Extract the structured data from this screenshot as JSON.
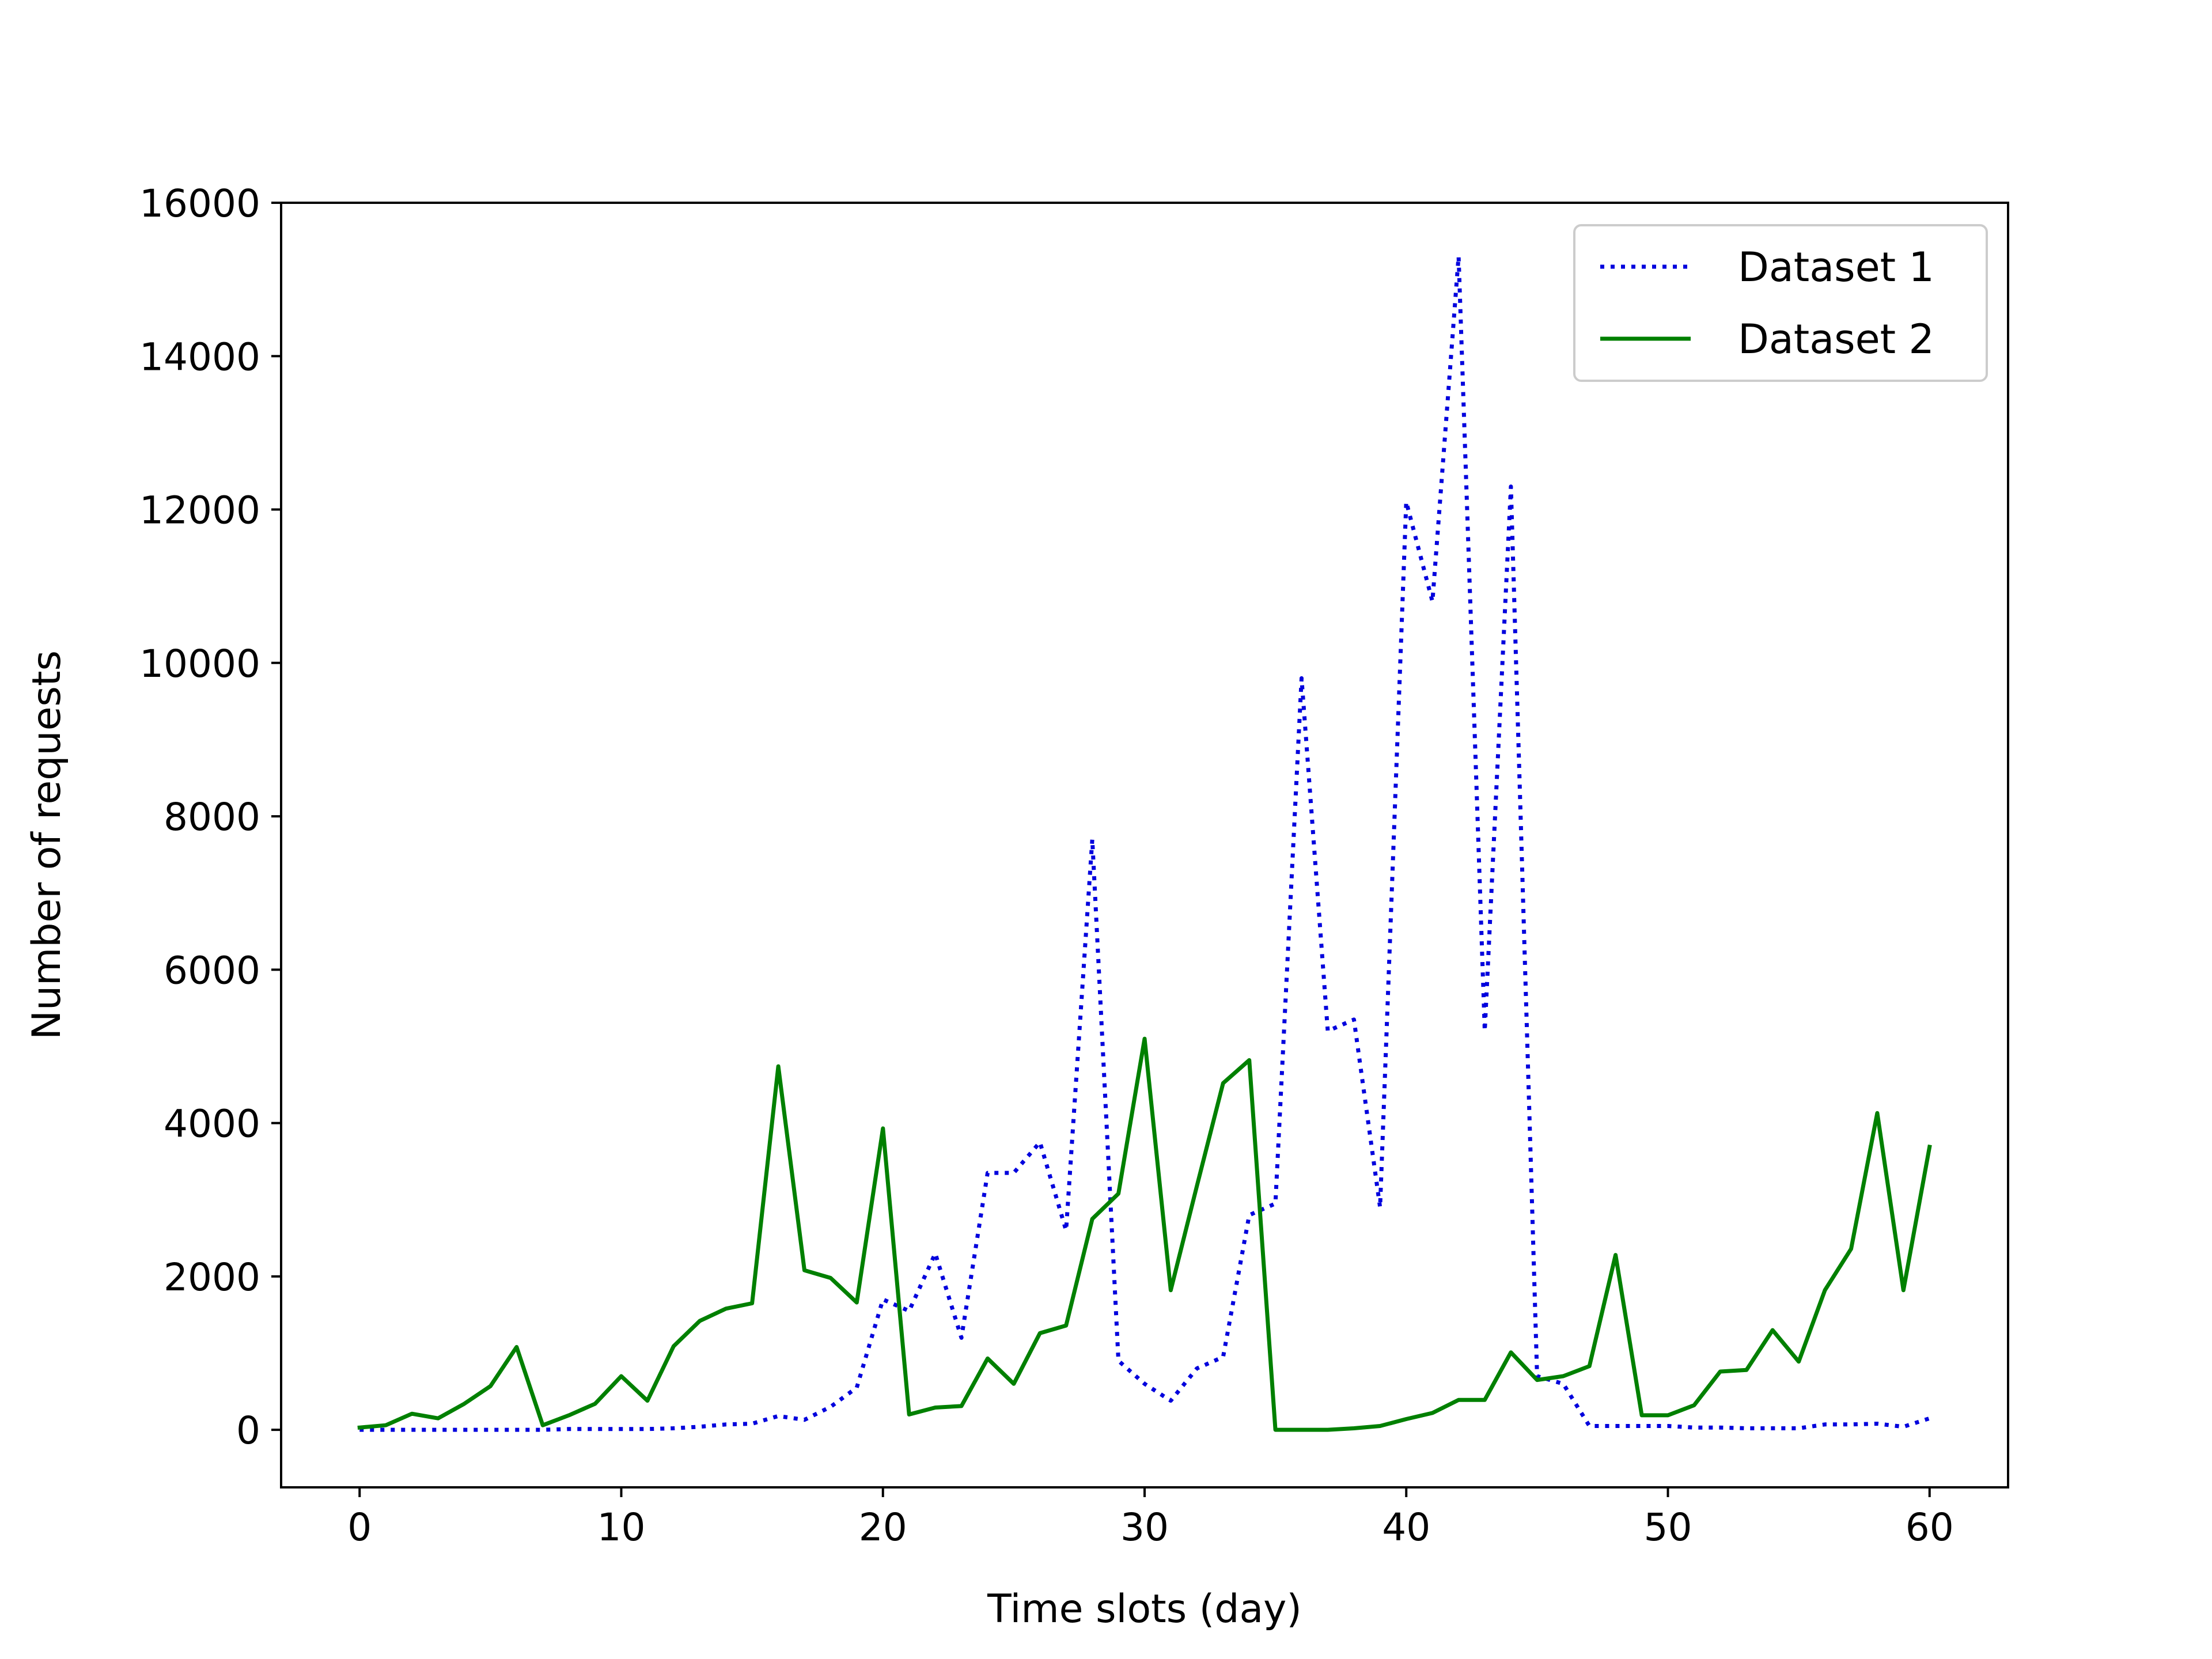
{
  "chart_data": {
    "type": "line",
    "title": "",
    "xlabel": "Time slots (day)",
    "ylabel": "Number of requests",
    "xlim": [
      -3,
      63
    ],
    "ylim": [
      -750,
      16000
    ],
    "xticks": [
      0,
      10,
      20,
      30,
      40,
      50,
      60
    ],
    "yticks": [
      0,
      2000,
      4000,
      6000,
      8000,
      10000,
      12000,
      14000,
      16000
    ],
    "grid": false,
    "legend_position": "top-right",
    "x": [
      0,
      1,
      2,
      3,
      4,
      5,
      6,
      7,
      8,
      9,
      10,
      11,
      12,
      13,
      14,
      15,
      16,
      17,
      18,
      19,
      20,
      21,
      22,
      23,
      24,
      25,
      26,
      27,
      28,
      29,
      30,
      31,
      32,
      33,
      34,
      35,
      36,
      37,
      38,
      39,
      40,
      41,
      42,
      43,
      44,
      45,
      46,
      47,
      48,
      49,
      50,
      51,
      52,
      53,
      54,
      55,
      56,
      57,
      58,
      59,
      60
    ],
    "series": [
      {
        "name": "Dataset 1",
        "color": "#0000dd",
        "line_style": "dotted",
        "values": [
          0,
          0,
          0,
          0,
          0,
          0,
          0,
          0,
          10,
          10,
          10,
          10,
          20,
          40,
          70,
          80,
          180,
          130,
          300,
          550,
          1700,
          1550,
          2300,
          1200,
          3350,
          3350,
          3750,
          2600,
          7700,
          900,
          600,
          380,
          800,
          950,
          2800,
          2950,
          9800,
          5200,
          5350,
          2900,
          12100,
          10800,
          15300,
          5200,
          12300,
          700,
          600,
          50,
          50,
          50,
          50,
          30,
          30,
          20,
          20,
          20,
          70,
          70,
          80,
          40,
          150
        ]
      },
      {
        "name": "Dataset 2",
        "color": "#008000",
        "line_style": "solid",
        "values": [
          30,
          60,
          210,
          150,
          340,
          570,
          1080,
          60,
          190,
          340,
          700,
          380,
          1090,
          1420,
          1580,
          1650,
          4740,
          2080,
          1980,
          1660,
          3930,
          200,
          290,
          310,
          930,
          600,
          1260,
          1360,
          2750,
          3080,
          5100,
          1820,
          3180,
          4520,
          4820,
          0,
          0,
          0,
          20,
          50,
          140,
          220,
          390,
          390,
          1010,
          650,
          700,
          830,
          2280,
          190,
          190,
          320,
          760,
          780,
          1300,
          890,
          1820,
          2360,
          4130,
          1820,
          3690
        ]
      }
    ]
  }
}
